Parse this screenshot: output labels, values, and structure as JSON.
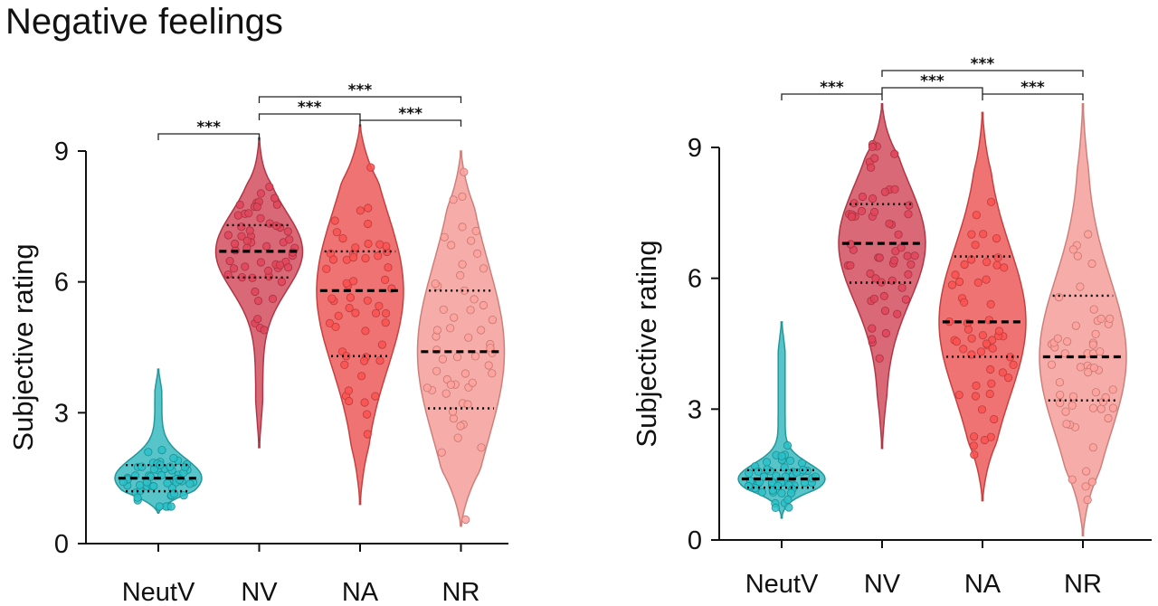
{
  "title": "Negative feelings",
  "colors": {
    "NeutV": "#27b3b9",
    "NV": "#cf3f52",
    "NA": "#ea4b4b",
    "NR": "#f49590"
  },
  "chart_data": [
    {
      "type": "violin",
      "ylabel": "Subjective rating",
      "ylim": [
        0,
        9
      ],
      "yticks": [
        0,
        3,
        6,
        9
      ],
      "categories": [
        "NeutV",
        "NV",
        "NA",
        "NR"
      ],
      "range": [
        [
          0.7,
          4.0
        ],
        [
          2.2,
          9.3
        ],
        [
          0.9,
          9.6
        ],
        [
          0.4,
          9.0
        ]
      ],
      "median": [
        1.5,
        6.7,
        5.8,
        4.4
      ],
      "quartiles": [
        [
          1.2,
          1.8
        ],
        [
          6.1,
          7.3
        ],
        [
          4.3,
          6.7
        ],
        [
          3.1,
          5.8
        ]
      ],
      "significance": [
        {
          "from": "NeutV",
          "to": "NV",
          "label": "***"
        },
        {
          "from": "NV",
          "to": "NA",
          "label": "***"
        },
        {
          "from": "NA",
          "to": "NR",
          "label": "***"
        },
        {
          "from": "NV",
          "to": "NR",
          "label": "***"
        }
      ]
    },
    {
      "type": "violin",
      "ylabel": "Subjective rating",
      "ylim": [
        0,
        9
      ],
      "yticks": [
        0,
        3,
        6,
        9
      ],
      "categories": [
        "NeutV",
        "NV",
        "NA",
        "NR"
      ],
      "range": [
        [
          0.5,
          5.0
        ],
        [
          2.1,
          10.0
        ],
        [
          0.9,
          9.8
        ],
        [
          0.1,
          10.0
        ]
      ],
      "median": [
        1.4,
        6.8,
        5.0,
        4.2
      ],
      "quartiles": [
        [
          1.2,
          1.6
        ],
        [
          5.9,
          7.7
        ],
        [
          4.2,
          6.5
        ],
        [
          3.2,
          5.6
        ]
      ],
      "significance": [
        {
          "from": "NeutV",
          "to": "NV",
          "label": "***"
        },
        {
          "from": "NV",
          "to": "NA",
          "label": "***"
        },
        {
          "from": "NA",
          "to": "NR",
          "label": "***"
        },
        {
          "from": "NV",
          "to": "NR",
          "label": "***"
        }
      ]
    }
  ]
}
